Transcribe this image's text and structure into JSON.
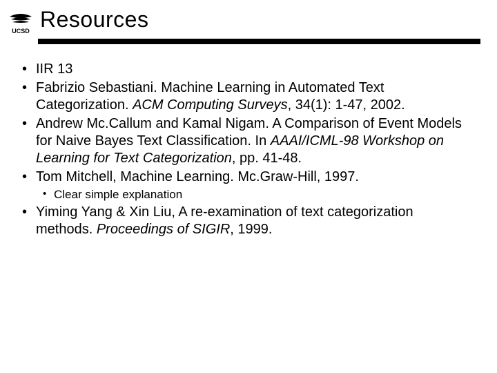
{
  "title": "Resources",
  "logo_label": "UCSD",
  "bullets": [
    {
      "pre": "IIR 13",
      "ital": "",
      "post": ""
    },
    {
      "pre": "Fabrizio Sebastiani.  Machine Learning in Automated Text Categorization.  ",
      "ital": "ACM Computing Surveys",
      "post": ", 34(1): 1-47, 2002."
    },
    {
      "pre": "Andrew Mc.Callum and Kamal Nigam. A Comparison of Event Models for Naive Bayes Text Classification. In ",
      "ital": "AAAI/ICML-98 Workshop on Learning for Text Categorization",
      "post": ", pp. 41-48."
    },
    {
      "pre": "Tom Mitchell, Machine Learning.  Mc.Graw-Hill, 1997.",
      "ital": "",
      "post": "",
      "sub": [
        "Clear simple explanation"
      ]
    },
    {
      "pre": "Yiming Yang & Xin Liu, A re-examination of text categorization methods.  ",
      "ital": "Proceedings of SIGIR",
      "post": ", 1999."
    }
  ],
  "colors": {
    "text": "#000000",
    "background": "#ffffff",
    "rule": "#000000"
  },
  "fonts": {
    "title_size": 32,
    "body_size": 20,
    "sub_size": 17,
    "family": "Arial"
  }
}
